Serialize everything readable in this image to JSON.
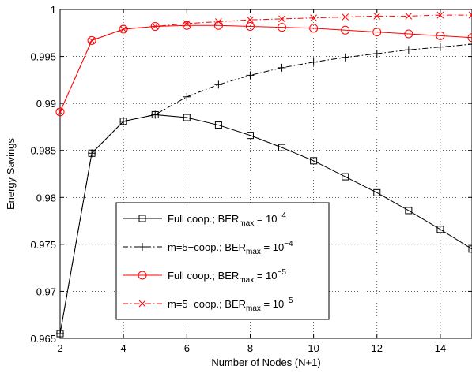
{
  "chart_data": {
    "type": "line",
    "xlabel": "Number of Nodes (N+1)",
    "ylabel": "Energy Savings",
    "xlim": [
      2,
      15
    ],
    "ylim": [
      0.965,
      1.0
    ],
    "xticks": [
      "2",
      "4",
      "6",
      "8",
      "10",
      "12",
      "14"
    ],
    "xtick_values": [
      2,
      4,
      6,
      8,
      10,
      12,
      14
    ],
    "yticks": [
      "0.965",
      "0.97",
      "0.975",
      "0.98",
      "0.985",
      "0.99",
      "0.995",
      "1"
    ],
    "ytick_values": [
      0.965,
      0.97,
      0.975,
      0.98,
      0.985,
      0.99,
      0.995,
      1.0
    ],
    "grid": true,
    "legend_position": "lower-center",
    "x": [
      2,
      3,
      4,
      5,
      6,
      7,
      8,
      9,
      10,
      11,
      12,
      13,
      14,
      15
    ],
    "series": [
      {
        "name": "Full coop.; BER",
        "name_sub": "max",
        "name_mid": " = 10",
        "name_sup": "−4",
        "color": "#000000",
        "line": "solid",
        "marker": "square",
        "values": [
          0.9655,
          0.9847,
          0.9881,
          0.9888,
          0.9885,
          0.9877,
          0.9866,
          0.9853,
          0.9839,
          0.9822,
          0.9805,
          0.9786,
          0.9766,
          0.9745
        ]
      },
      {
        "name": "m=5−coop.; BER",
        "name_sub": "max",
        "name_mid": " = 10",
        "name_sup": "−4",
        "color": "#000000",
        "line": "dashdot",
        "marker": "plus",
        "values": [
          0.9655,
          0.9847,
          0.9881,
          0.9888,
          0.9907,
          0.992,
          0.993,
          0.9938,
          0.9944,
          0.9949,
          0.9953,
          0.9957,
          0.996,
          0.9963
        ]
      },
      {
        "name": "Full coop.; BER",
        "name_sub": "max",
        "name_mid": " = 10",
        "name_sup": "−5",
        "color": "#ff0000",
        "line": "solid",
        "marker": "circle",
        "values": [
          0.9891,
          0.9967,
          0.9979,
          0.9982,
          0.9983,
          0.9983,
          0.9982,
          0.9981,
          0.998,
          0.9978,
          0.9976,
          0.9974,
          0.9972,
          0.997
        ]
      },
      {
        "name": "m=5−coop.; BER",
        "name_sub": "max",
        "name_mid": " = 10",
        "name_sup": "−5",
        "color": "#ff0000",
        "line": "dashdot",
        "marker": "x",
        "values": [
          0.9891,
          0.9967,
          0.9979,
          0.9982,
          0.9985,
          0.9987,
          0.9989,
          0.999,
          0.9991,
          0.9992,
          0.9993,
          0.9993,
          0.9994,
          0.9994
        ]
      }
    ]
  }
}
